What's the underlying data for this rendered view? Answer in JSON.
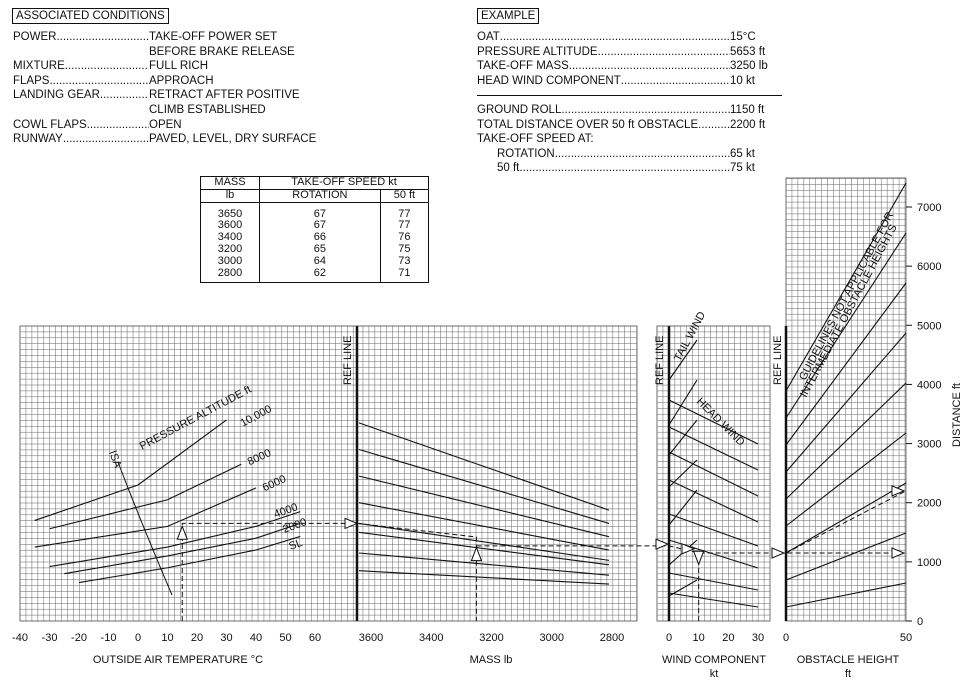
{
  "assoc": {
    "title": "ASSOCIATED CONDITIONS",
    "rows": [
      {
        "label": "POWER",
        "value": "TAKE-OFF POWER SET"
      },
      {
        "label": "",
        "value": "BEFORE BRAKE RELEASE"
      },
      {
        "label": "MIXTURE",
        "value": "FULL RICH"
      },
      {
        "label": "FLAPS",
        "value": "APPROACH"
      },
      {
        "label": "LANDING GEAR",
        "value": "RETRACT AFTER POSITIVE"
      },
      {
        "label": "",
        "value": "CLIMB ESTABLISHED"
      },
      {
        "label": "COWL FLAPS",
        "value": "OPEN"
      },
      {
        "label": "RUNWAY",
        "value": "PAVED, LEVEL, DRY SURFACE"
      }
    ]
  },
  "example": {
    "title": "EXAMPLE",
    "inputs": [
      {
        "label": "OAT",
        "value": "15°C"
      },
      {
        "label": "PRESSURE ALTITUDE",
        "value": "5653 ft"
      },
      {
        "label": "TAKE-OFF MASS",
        "value": "3250 lb"
      },
      {
        "label": "HEAD WIND COMPONENT",
        "value": "10 kt"
      }
    ],
    "ground_roll_label": "GROUND ROLL",
    "ground_roll_value": "1150 ft",
    "total_label": "TOTAL DISTANCE OVER 50 ft OBSTACLE",
    "total_value": "2200 ft",
    "speed_header": "TAKE-OFF SPEED AT:",
    "rotation_label": "ROTATION",
    "rotation_value": "65 kt",
    "fifty_label": "50 ft",
    "fifty_value": "75 kt"
  },
  "speed_table": {
    "col_mass": "MASS",
    "col_mass_unit": "lb",
    "col_speed": "TAKE-OFF SPEED kt",
    "col_rotation": "ROTATION",
    "col_50ft": "50 ft",
    "rows": [
      {
        "mass": "3650",
        "rotation": "67",
        "fifty": "77"
      },
      {
        "mass": "3600",
        "rotation": "67",
        "fifty": "77"
      },
      {
        "mass": "3400",
        "rotation": "66",
        "fifty": "76"
      },
      {
        "mass": "3200",
        "rotation": "65",
        "fifty": "75"
      },
      {
        "mass": "3000",
        "rotation": "64",
        "fifty": "73"
      },
      {
        "mass": "2800",
        "rotation": "62",
        "fifty": "71"
      }
    ]
  },
  "chart_data": {
    "type": "line",
    "panels": [
      {
        "name": "oat",
        "xlabel": "OUTSIDE AIR TEMPERATURE °C",
        "xticks": [
          "-40",
          "-30",
          "-20",
          "-10",
          "0",
          "10",
          "20",
          "30",
          "40",
          "50",
          "60"
        ],
        "xlim": [
          -40,
          65
        ],
        "curves_label": "PRESSURE ALTITUDE  ft",
        "isa_label": "ISA",
        "series": [
          {
            "name": "SL",
            "x": [
              -20,
              10,
              40,
              55
            ],
            "y": [
              650,
              900,
              1200,
              1430
            ]
          },
          {
            "name": "2000",
            "x": [
              -25,
              10,
              40,
              55
            ],
            "y": [
              800,
              1100,
              1400,
              1650
            ]
          },
          {
            "name": "4000",
            "x": [
              -30,
              10,
              40,
              55
            ],
            "y": [
              920,
              1250,
              1600,
              1850
            ]
          },
          {
            "name": "6000",
            "x": [
              -35,
              10,
              40
            ],
            "y": [
              1250,
              1600,
              2250
            ]
          },
          {
            "name": "8000",
            "x": [
              -30,
              10,
              35
            ],
            "y": [
              1560,
              2050,
              2650
            ]
          },
          {
            "name": "10,000",
            "x": [
              -35,
              0,
              30
            ],
            "y": [
              1700,
              2300,
              3400
            ]
          }
        ]
      },
      {
        "name": "mass",
        "xlabel": "MASS  lb",
        "xticks": [
          "3600",
          "3400",
          "3200",
          "3000",
          "2800"
        ],
        "xlim": [
          3680,
          2800
        ],
        "ref_label": "REF LINE",
        "guide_starts": [
          850,
          1150,
          1500,
          1650,
          2000,
          2450,
          2900,
          3350
        ]
      },
      {
        "name": "wind",
        "xlabel": "WIND COMPONENT",
        "xunit": "kt",
        "xticks": [
          "0",
          "10",
          "20",
          "30"
        ],
        "xlim": [
          0,
          30
        ],
        "ref_label": "REF LINE",
        "tail_label": "TAIL WIND",
        "head_label": "HEAD WIND"
      },
      {
        "name": "obstacle",
        "xlabel": "OBSTACLE HEIGHT",
        "xunit": "ft",
        "xticks": [
          "0",
          "50"
        ],
        "xlim": [
          0,
          50
        ],
        "ref_label": "REF LINE",
        "note": "GUIDELINES NOT APPLICABLE FOR INTERMEDIATE OBSTACLE HEIGHTS"
      }
    ],
    "yaxis": {
      "label": "DISTANCE  ft",
      "ticks": [
        "0",
        "1000",
        "2000",
        "3000",
        "4000",
        "5000",
        "6000",
        "7000"
      ],
      "ylim": [
        0,
        7400
      ]
    },
    "example_path": {
      "oat_c": 15,
      "pressure_alt_ft": 5653,
      "mass_lb": 3250,
      "headwind_kt": 10,
      "ref_distance_ft": 1650,
      "ground_roll_ft": 1150,
      "total_50ft_ft": 2200
    }
  }
}
